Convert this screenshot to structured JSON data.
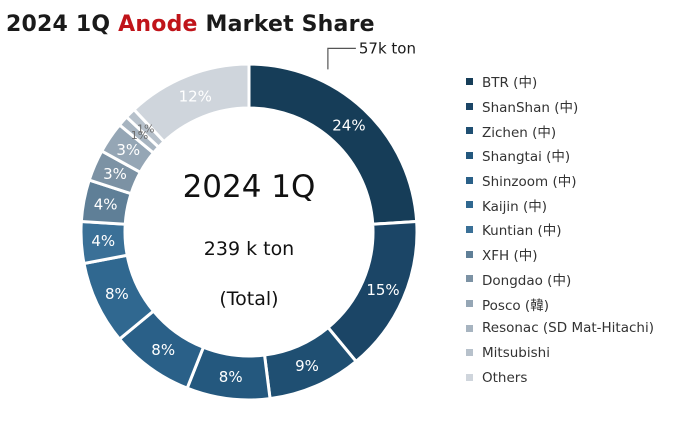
{
  "title": {
    "prefix": "2024 1Q",
    "accent": "Anode",
    "suffix": "Market Share"
  },
  "chart_data": {
    "type": "pie",
    "title": "2024 1Q Anode Market Share",
    "center_text": {
      "line1": "2024 1Q",
      "line2": "239 k ton",
      "line3": "(Total)"
    },
    "callout": "57k ton",
    "legend_position": "right",
    "series": [
      {
        "name": "BTR (中)",
        "value": 24,
        "label": "24%",
        "color": "#163d58"
      },
      {
        "name": "ShanShan (中)",
        "value": 15,
        "label": "15%",
        "color": "#1b4566"
      },
      {
        "name": "Zichen (中)",
        "value": 9,
        "label": "9%",
        "color": "#1f4f72"
      },
      {
        "name": "Shangtai (中)",
        "value": 8,
        "label": "8%",
        "color": "#24587e"
      },
      {
        "name": "Shinzoom (中)",
        "value": 8,
        "label": "8%",
        "color": "#2a6088"
      },
      {
        "name": "Kaijin (中)",
        "value": 8,
        "label": "8%",
        "color": "#306890"
      },
      {
        "name": "Kuntian (中)",
        "value": 4,
        "label": "4%",
        "color": "#3a7097"
      },
      {
        "name": "XFH (中)",
        "value": 4,
        "label": "4%",
        "color": "#5f7f97"
      },
      {
        "name": "Dongdao (中)",
        "value": 3,
        "label": "3%",
        "color": "#7c92a4"
      },
      {
        "name": "Posco (韓)",
        "value": 3,
        "label": "3%",
        "color": "#95a6b5"
      },
      {
        "name": "Resonac (SD Mat-Hitachi)",
        "value": 1,
        "label": "1%",
        "color": "#a7b4c0"
      },
      {
        "name": "Mitsubishi",
        "value": 1,
        "label": "1%",
        "color": "#b7c1cb"
      },
      {
        "name": "Others",
        "value": 12,
        "label": "12%",
        "color": "#cfd5dc"
      }
    ]
  }
}
